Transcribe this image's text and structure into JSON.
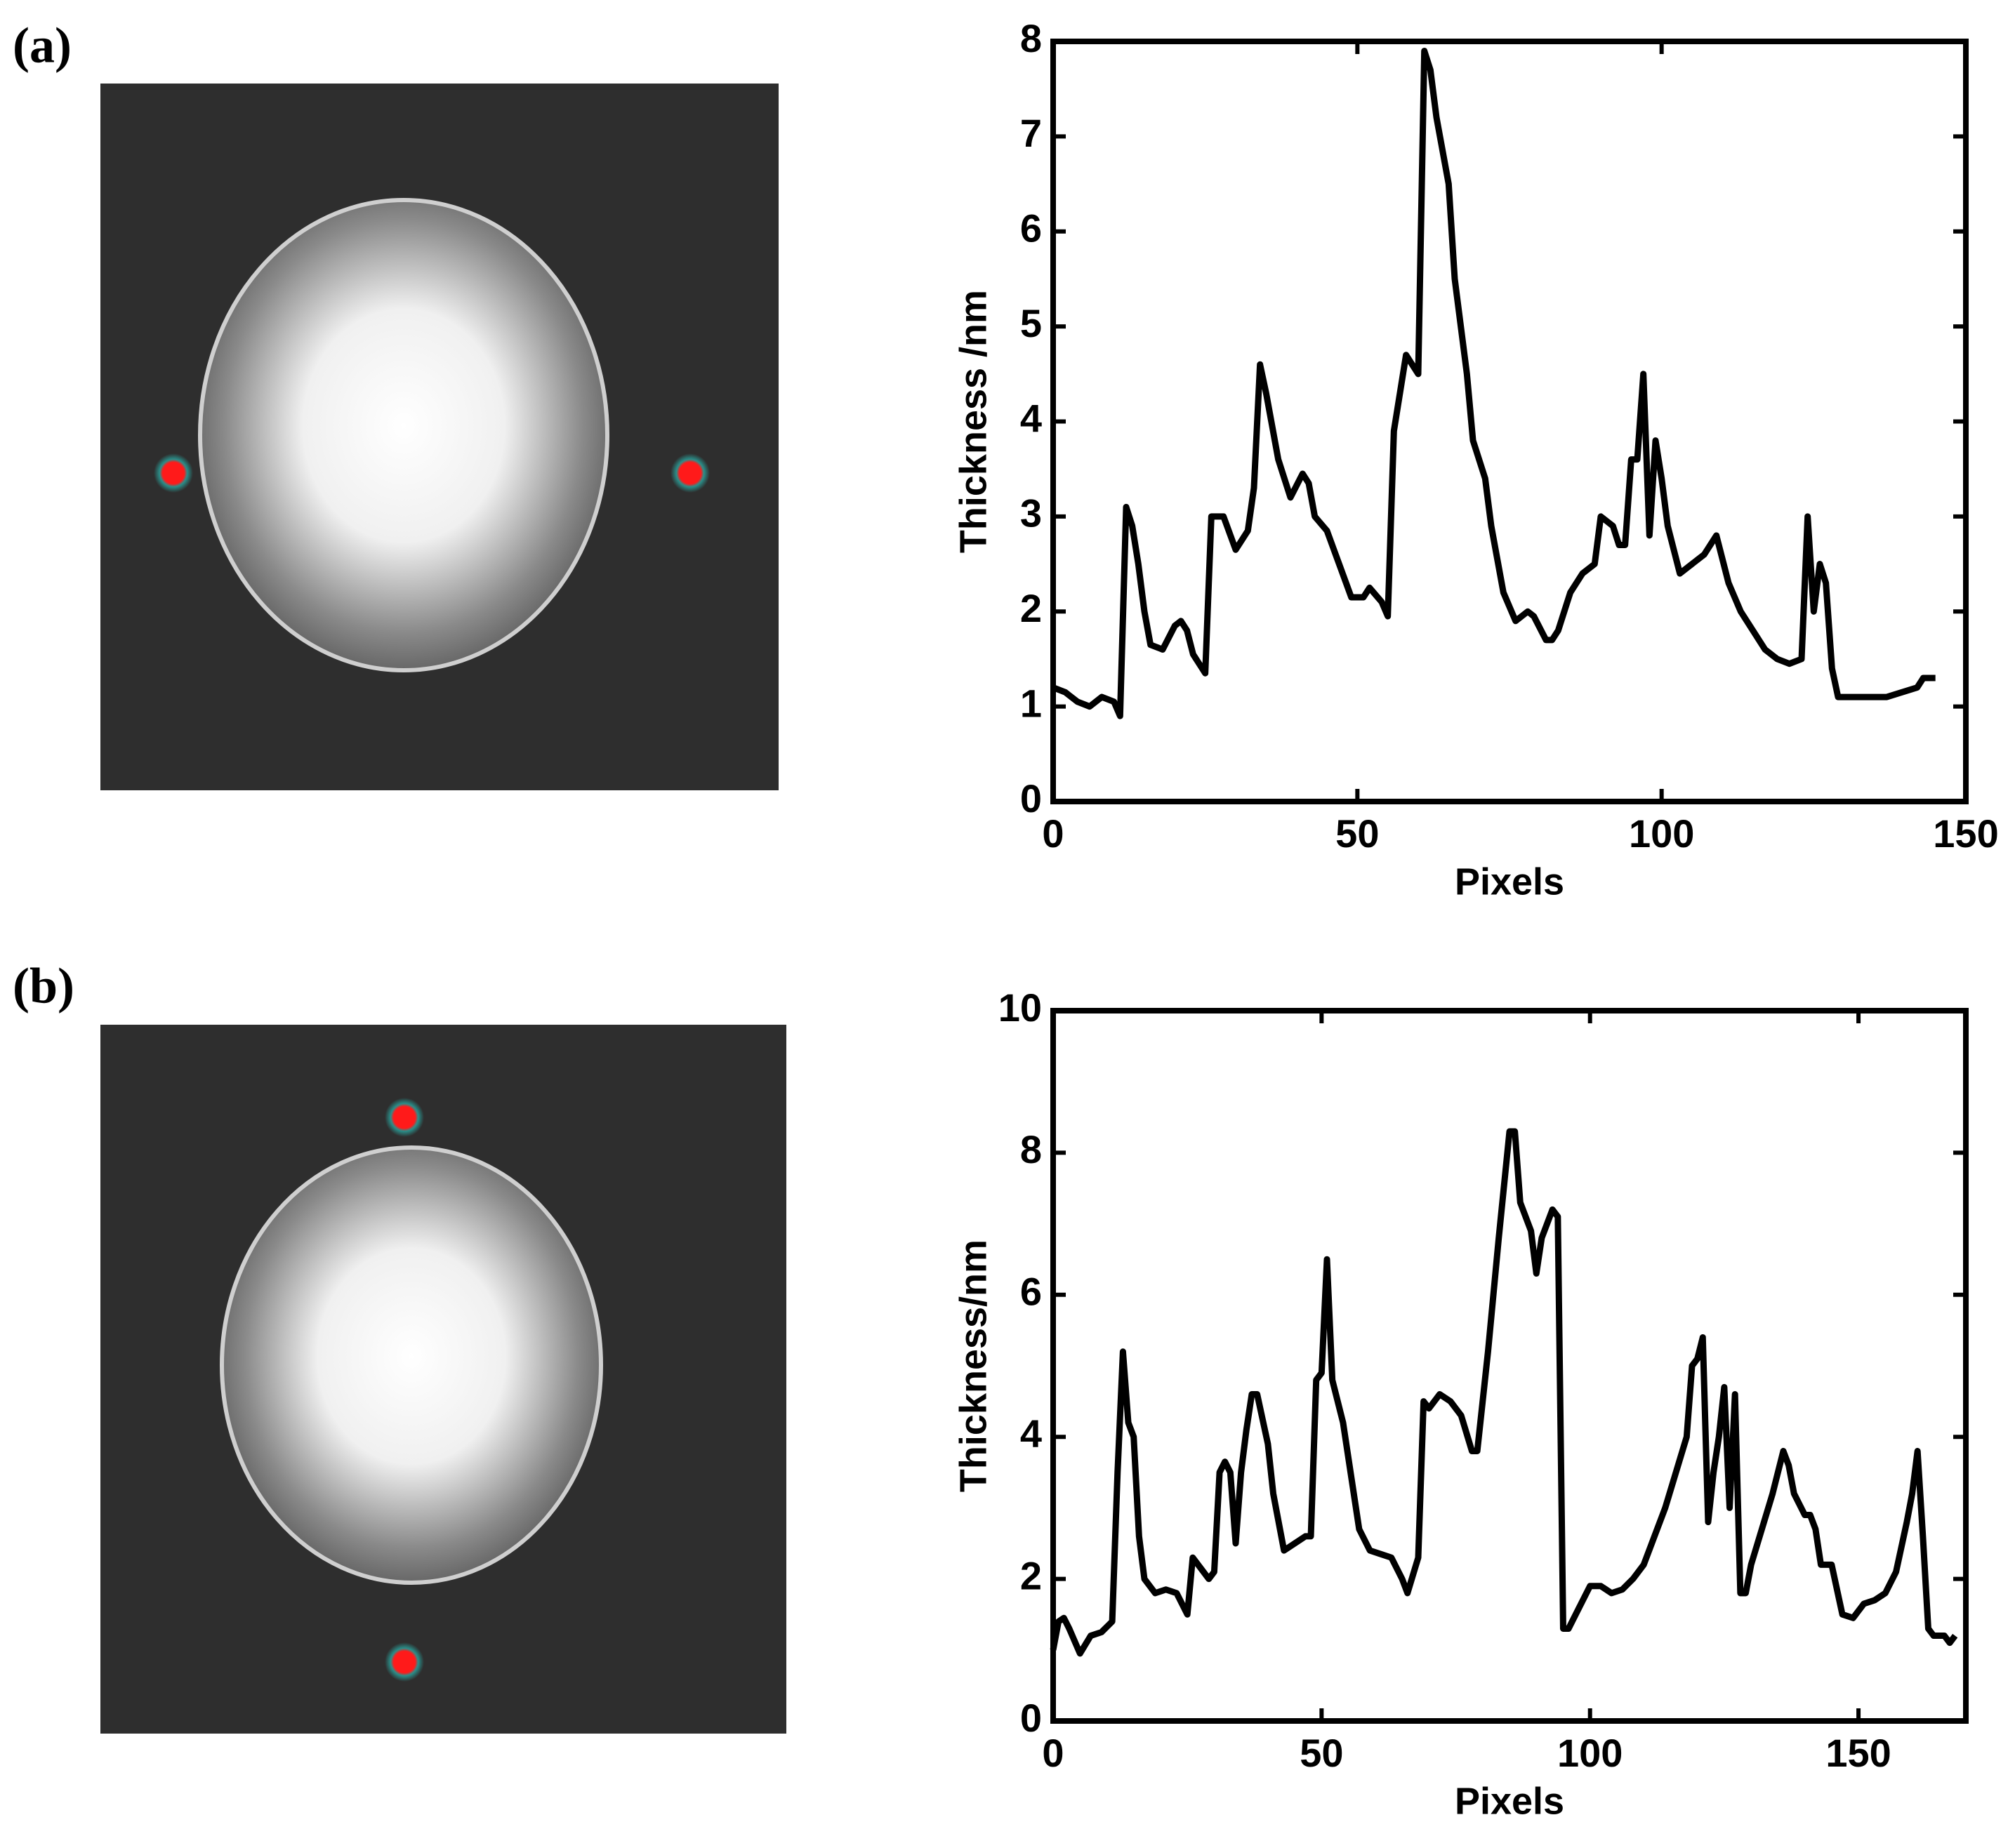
{
  "chart_data": [
    {
      "type": "line",
      "label": "(a)",
      "xlabel": "Pixels",
      "ylabel": "Thickness /nm",
      "xlim": [
        0,
        150
      ],
      "xticks": [
        0,
        50,
        100,
        150
      ],
      "ylim": [
        0,
        8
      ],
      "yticks": [
        0,
        1,
        2,
        3,
        4,
        5,
        6,
        7,
        8
      ],
      "series": [
        {
          "color": "#000000",
          "x": [
            0,
            2,
            4,
            6,
            8,
            10,
            11,
            12,
            13,
            14,
            15,
            16,
            18,
            20,
            21,
            22,
            23,
            25,
            26,
            28,
            30,
            32,
            33,
            34,
            35,
            37,
            39,
            41,
            42,
            43,
            45,
            47,
            49,
            51,
            52,
            54,
            55,
            56,
            58,
            59,
            60,
            61,
            62,
            63,
            65,
            66,
            68,
            69,
            71,
            72,
            74,
            76,
            78,
            79,
            81,
            82,
            83,
            85,
            87,
            89,
            90,
            92,
            93,
            94,
            95,
            96,
            97,
            98,
            99,
            100,
            101,
            103,
            105,
            107,
            109,
            111,
            113,
            115,
            117,
            119,
            121,
            123,
            124,
            125,
            126,
            127,
            128,
            129,
            131,
            137,
            142,
            143,
            145
          ],
          "values": [
            1.2,
            1.15,
            1.05,
            1.0,
            1.1,
            1.05,
            0.9,
            3.1,
            2.9,
            2.5,
            2.0,
            1.65,
            1.6,
            1.85,
            1.9,
            1.8,
            1.55,
            1.35,
            3.0,
            3.0,
            2.65,
            2.85,
            3.3,
            4.6,
            4.3,
            3.6,
            3.2,
            3.45,
            3.35,
            3.0,
            2.85,
            2.5,
            2.15,
            2.15,
            2.25,
            2.1,
            1.95,
            3.9,
            4.7,
            4.6,
            4.5,
            7.9,
            7.7,
            7.2,
            6.5,
            5.5,
            4.5,
            3.8,
            3.4,
            2.9,
            2.2,
            1.9,
            2.0,
            1.95,
            1.7,
            1.7,
            1.8,
            2.2,
            2.4,
            2.5,
            3.0,
            2.9,
            2.7,
            2.7,
            3.6,
            3.6,
            4.5,
            2.8,
            3.8,
            3.4,
            2.9,
            2.4,
            2.5,
            2.6,
            2.8,
            2.3,
            2.0,
            1.8,
            1.6,
            1.5,
            1.45,
            1.5,
            3.0,
            2.0,
            2.5,
            2.3,
            1.4,
            1.1,
            1.1,
            1.1,
            1.2,
            1.3,
            1.3
          ]
        }
      ]
    },
    {
      "type": "line",
      "label": "(b)",
      "xlabel": "Pixels",
      "ylabel": "Thickness/nm",
      "xlim": [
        0,
        170
      ],
      "xticks": [
        0,
        50,
        100,
        150
      ],
      "ylim": [
        0,
        10
      ],
      "yticks": [
        0,
        2,
        4,
        6,
        8,
        10
      ],
      "series": [
        {
          "color": "#000000",
          "x": [
            0,
            1,
            2,
            3,
            5,
            7,
            9,
            11,
            12,
            13,
            14,
            15,
            16,
            17,
            19,
            21,
            23,
            25,
            26,
            28,
            29,
            30,
            31,
            32,
            33,
            34,
            35,
            36,
            37,
            38,
            40,
            41,
            43,
            45,
            47,
            48,
            49,
            50,
            51,
            52,
            54,
            56,
            57,
            59,
            61,
            63,
            65,
            66,
            68,
            69,
            70,
            72,
            74,
            76,
            78,
            79,
            81,
            83,
            85,
            86,
            87,
            88,
            89,
            90,
            91,
            92,
            93,
            94,
            95,
            96,
            98,
            100,
            102,
            104,
            106,
            108,
            110,
            112,
            114,
            116,
            118,
            119,
            120,
            121,
            122,
            123,
            124,
            125,
            126,
            127,
            128,
            129,
            130,
            132,
            134,
            136,
            137,
            138,
            140,
            141,
            142,
            143,
            145,
            147,
            149,
            151,
            153,
            155,
            157,
            159,
            160,
            161,
            162,
            163,
            164,
            166,
            167,
            168
          ],
          "values": [
            1.0,
            1.4,
            1.45,
            1.3,
            0.95,
            1.2,
            1.25,
            1.4,
            3.5,
            5.2,
            4.2,
            4.0,
            2.6,
            2.0,
            1.8,
            1.85,
            1.8,
            1.5,
            2.3,
            2.1,
            2.0,
            2.1,
            3.5,
            3.65,
            3.5,
            2.5,
            3.5,
            4.1,
            4.6,
            4.6,
            3.9,
            3.2,
            2.4,
            2.5,
            2.6,
            2.6,
            4.8,
            4.9,
            6.5,
            4.8,
            4.2,
            3.2,
            2.7,
            2.4,
            2.35,
            2.3,
            2.0,
            1.8,
            2.3,
            4.5,
            4.4,
            4.6,
            4.5,
            4.3,
            3.8,
            3.8,
            5.2,
            6.8,
            8.3,
            8.3,
            7.3,
            7.1,
            6.9,
            6.3,
            6.8,
            7.0,
            7.2,
            7.1,
            1.3,
            1.3,
            1.6,
            1.9,
            1.9,
            1.8,
            1.85,
            2.0,
            2.2,
            2.6,
            3.0,
            3.5,
            4.0,
            5.0,
            5.1,
            5.4,
            2.8,
            3.5,
            4.0,
            4.7,
            3.0,
            4.6,
            1.8,
            1.8,
            2.2,
            2.7,
            3.2,
            3.8,
            3.6,
            3.2,
            2.9,
            2.9,
            2.7,
            2.2,
            2.2,
            1.5,
            1.45,
            1.65,
            1.7,
            1.8,
            2.1,
            2.8,
            3.2,
            3.8,
            2.6,
            1.3,
            1.2,
            1.2,
            1.1,
            1.2
          ]
        }
      ]
    }
  ]
}
